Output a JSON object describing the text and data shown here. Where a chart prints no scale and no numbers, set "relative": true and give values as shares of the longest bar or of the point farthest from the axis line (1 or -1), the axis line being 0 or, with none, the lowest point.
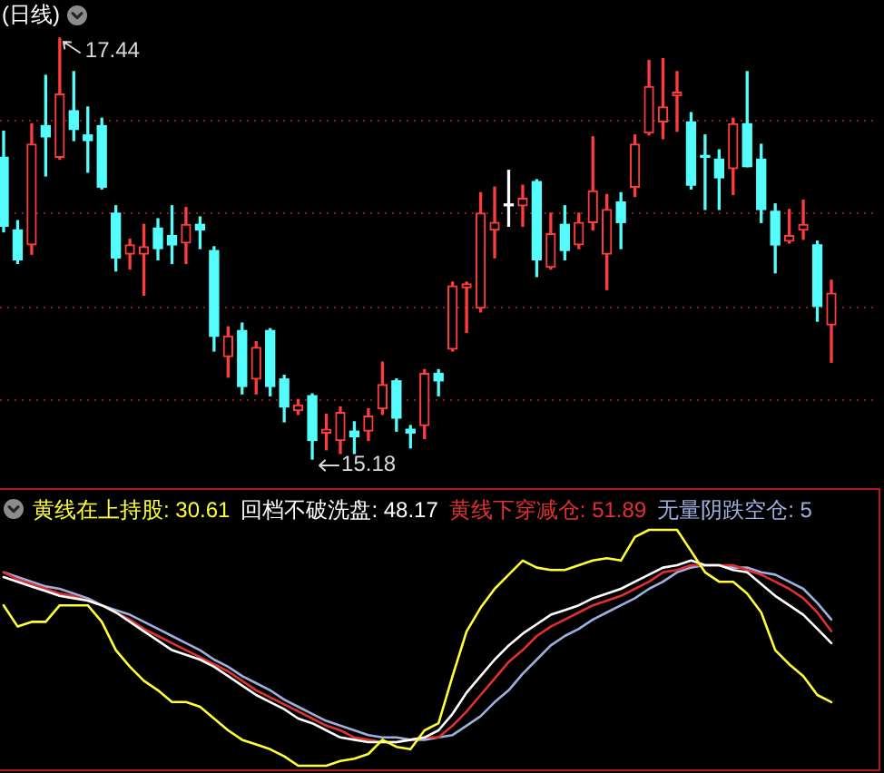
{
  "chart_data": [
    {
      "type": "candlestick",
      "title": "(日线)",
      "grid": "y",
      "categories": [
        null,
        null,
        null,
        null,
        null,
        null,
        null,
        null,
        null,
        null,
        null,
        null,
        null,
        null,
        null,
        null,
        null,
        null,
        null,
        null,
        null,
        null,
        null,
        null,
        null,
        null,
        null,
        null,
        null,
        null,
        null,
        null,
        null,
        null,
        null,
        null,
        null,
        null,
        null,
        null,
        null,
        null,
        null,
        null,
        null,
        null,
        null,
        null,
        null,
        null,
        null,
        null,
        null,
        null,
        null,
        null,
        null,
        null,
        null,
        null
      ],
      "ohlc": [
        [
          16.8,
          16.94,
          16.4,
          16.43
        ],
        [
          16.41,
          16.46,
          16.23,
          16.25
        ],
        [
          16.33,
          16.98,
          16.28,
          16.87
        ],
        [
          16.97,
          17.24,
          16.7,
          16.91
        ],
        [
          16.8,
          17.44,
          16.79,
          17.14
        ],
        [
          17.05,
          17.26,
          16.89,
          16.95
        ],
        [
          16.92,
          17.07,
          16.72,
          16.89
        ],
        [
          16.97,
          17.01,
          16.63,
          16.64
        ],
        [
          16.5,
          16.54,
          16.19,
          16.26
        ],
        [
          16.28,
          16.36,
          16.2,
          16.33
        ],
        [
          16.28,
          16.44,
          16.06,
          16.32
        ],
        [
          16.42,
          16.47,
          16.25,
          16.31
        ],
        [
          16.38,
          16.54,
          16.23,
          16.33
        ],
        [
          16.34,
          16.53,
          16.23,
          16.44
        ],
        [
          16.44,
          16.48,
          16.31,
          16.41
        ],
        [
          16.3,
          16.32,
          15.76,
          15.84
        ],
        [
          15.73,
          15.89,
          15.62,
          15.84
        ],
        [
          15.87,
          15.91,
          15.53,
          15.57
        ],
        [
          15.61,
          15.81,
          15.53,
          15.78
        ],
        [
          15.87,
          15.88,
          15.52,
          15.57
        ],
        [
          15.61,
          15.63,
          15.38,
          15.46
        ],
        [
          15.44,
          15.5,
          15.42,
          15.47
        ],
        [
          15.52,
          15.53,
          15.18,
          15.28
        ],
        [
          15.32,
          15.42,
          15.23,
          15.34
        ],
        [
          15.28,
          15.46,
          15.21,
          15.43
        ],
        [
          15.33,
          15.38,
          15.21,
          15.3
        ],
        [
          15.33,
          15.45,
          15.28,
          15.41
        ],
        [
          15.45,
          15.7,
          15.42,
          15.58
        ],
        [
          15.6,
          15.61,
          15.33,
          15.4
        ],
        [
          15.34,
          15.36,
          15.24,
          15.32
        ],
        [
          15.36,
          15.66,
          15.29,
          15.64
        ],
        [
          15.64,
          15.66,
          15.52,
          15.6
        ],
        [
          15.77,
          16.13,
          15.76,
          16.11
        ],
        [
          16.1,
          16.13,
          15.86,
          16.12
        ],
        [
          15.99,
          16.61,
          15.97,
          16.5
        ],
        [
          16.41,
          16.64,
          16.26,
          16.45
        ],
        [
          16.54,
          16.73,
          16.43,
          16.54
        ],
        [
          16.54,
          16.65,
          16.43,
          16.58
        ],
        [
          16.67,
          16.68,
          16.16,
          16.25
        ],
        [
          16.21,
          16.5,
          16.2,
          16.39
        ],
        [
          16.44,
          16.54,
          16.25,
          16.3
        ],
        [
          16.33,
          16.5,
          16.31,
          16.45
        ],
        [
          16.45,
          16.91,
          16.41,
          16.62
        ],
        [
          16.28,
          16.6,
          16.09,
          16.52
        ],
        [
          16.56,
          16.61,
          16.31,
          16.45
        ],
        [
          16.64,
          16.92,
          16.59,
          16.87
        ],
        [
          16.93,
          17.32,
          16.92,
          17.18
        ],
        [
          16.99,
          17.33,
          16.9,
          17.07
        ],
        [
          17.13,
          17.26,
          16.94,
          17.15
        ],
        [
          16.99,
          17.04,
          16.63,
          16.65
        ],
        [
          16.81,
          16.92,
          16.52,
          16.8
        ],
        [
          16.79,
          16.84,
          16.52,
          16.69
        ],
        [
          16.74,
          17.01,
          16.6,
          16.98
        ],
        [
          16.98,
          17.26,
          16.75,
          16.75
        ],
        [
          16.79,
          16.87,
          16.45,
          16.52
        ],
        [
          16.51,
          16.55,
          16.18,
          16.33
        ],
        [
          16.35,
          16.52,
          16.34,
          16.38
        ],
        [
          16.41,
          16.57,
          16.36,
          16.44
        ],
        [
          16.33,
          16.35,
          15.92,
          16.0
        ],
        [
          15.9,
          16.14,
          15.7,
          16.07
        ]
      ],
      "colors": [
        "#54fcfc",
        "#54fcfc",
        "#ff3c3c",
        "#54fcfc",
        "#ff3c3c",
        "#54fcfc",
        "#54fcfc",
        "#54fcfc",
        "#54fcfc",
        "#ff3c3c",
        "#ff3c3c",
        "#54fcfc",
        "#54fcfc",
        "#ff3c3c",
        "#54fcfc",
        "#54fcfc",
        "#ff3c3c",
        "#54fcfc",
        "#ff3c3c",
        "#54fcfc",
        "#54fcfc",
        "#ff3c3c",
        "#54fcfc",
        "#ff3c3c",
        "#ff3c3c",
        "#54fcfc",
        "#ff3c3c",
        "#ff3c3c",
        "#54fcfc",
        "#54fcfc",
        "#ff3c3c",
        "#54fcfc",
        "#ff3c3c",
        "#ff3c3c",
        "#ff3c3c",
        "#ff3c3c",
        "#ffffff",
        "#ff3c3c",
        "#54fcfc",
        "#ff3c3c",
        "#54fcfc",
        "#ff3c3c",
        "#ff3c3c",
        "#ff3c3c",
        "#54fcfc",
        "#ff3c3c",
        "#ff3c3c",
        "#ff3c3c",
        "#ff3c3c",
        "#54fcfc",
        "#54fcfc",
        "#54fcfc",
        "#ff3c3c",
        "#54fcfc",
        "#54fcfc",
        "#54fcfc",
        "#ff3c3c",
        "#ff3c3c",
        "#54fcfc",
        "#ff3c3c"
      ],
      "yticks": [
        {
          "value": 17,
          "label": null
        },
        {
          "value": 16.5,
          "label": null
        },
        {
          "value": 16,
          "label": null
        },
        {
          "value": 15.5,
          "label": null
        }
      ],
      "annotations": [
        "17.44",
        "15.18"
      ]
    },
    {
      "type": "line",
      "relative": true,
      "legend": "top left",
      "categories": [
        null,
        null,
        null,
        null,
        null,
        null,
        null,
        null,
        null,
        null,
        null,
        null,
        null,
        null,
        null,
        null,
        null,
        null,
        null,
        null,
        null,
        null,
        null,
        null,
        null,
        null,
        null,
        null,
        null,
        null,
        null,
        null,
        null,
        null,
        null,
        null,
        null,
        null,
        null,
        null,
        null,
        null,
        null,
        null,
        null,
        null,
        null,
        null,
        null,
        null,
        null,
        null,
        null,
        null,
        null,
        null,
        null,
        null,
        null,
        null
      ],
      "series": [
        {
          "name": "黄线在上持股: 30.61",
          "color": "#ffff33",
          "values": [
            0.68,
            0.59,
            0.61,
            0.61,
            0.68,
            0.68,
            0.68,
            0.61,
            0.49,
            0.42,
            0.36,
            0.32,
            0.27,
            0.27,
            0.25,
            0.2,
            0.15,
            0.11,
            0.09,
            0.07,
            0.04,
            0,
            0,
            0,
            0.02,
            0.03,
            0.05,
            0.11,
            0.08,
            0.07,
            0.15,
            0.18,
            0.38,
            0.57,
            0.67,
            0.75,
            0.81,
            0.87,
            0.84,
            0.83,
            0.83,
            0.85,
            0.87,
            0.88,
            0.87,
            0.97,
            1,
            1,
            1,
            0.91,
            0.82,
            0.78,
            0.78,
            0.73,
            0.65,
            0.49,
            0.43,
            0.38,
            0.3,
            0.27
          ]
        },
        {
          "name": "回档不破洗盘: 48.17",
          "color": "#ffffff",
          "values": [
            0.8,
            0.78,
            0.76,
            0.74,
            0.72,
            0.71,
            0.7,
            0.68,
            0.65,
            0.61,
            0.57,
            0.53,
            0.49,
            0.47,
            0.45,
            0.42,
            0.38,
            0.34,
            0.3,
            0.27,
            0.24,
            0.2,
            0.18,
            0.15,
            0.12,
            0.11,
            0.1,
            0.1,
            0.1,
            0.11,
            0.12,
            0.15,
            0.22,
            0.31,
            0.38,
            0.45,
            0.51,
            0.56,
            0.6,
            0.64,
            0.66,
            0.68,
            0.71,
            0.73,
            0.75,
            0.78,
            0.81,
            0.84,
            0.85,
            0.87,
            0.85,
            0.85,
            0.83,
            0.82,
            0.77,
            0.72,
            0.68,
            0.64,
            0.58,
            0.52
          ]
        },
        {
          "name": "黄线下穿减仓: 51.89",
          "color": "#e03030",
          "values": [
            0.82,
            0.79,
            0.77,
            0.75,
            0.73,
            0.72,
            0.7,
            0.68,
            0.65,
            0.62,
            0.58,
            0.55,
            0.52,
            0.49,
            0.46,
            0.43,
            0.4,
            0.36,
            0.32,
            0.29,
            0.26,
            0.23,
            0.2,
            0.17,
            0.15,
            0.12,
            0.11,
            0.1,
            0.1,
            0.11,
            0.12,
            0.12,
            0.17,
            0.23,
            0.3,
            0.37,
            0.44,
            0.49,
            0.55,
            0.59,
            0.62,
            0.65,
            0.68,
            0.7,
            0.72,
            0.75,
            0.78,
            0.82,
            0.83,
            0.85,
            0.85,
            0.85,
            0.85,
            0.83,
            0.81,
            0.78,
            0.75,
            0.71,
            0.65,
            0.57
          ]
        },
        {
          "name": "无量阴跌空仓: 5",
          "color": "#9fb0e0",
          "values": [
            0.82,
            0.8,
            0.78,
            0.76,
            0.75,
            0.73,
            0.71,
            0.68,
            0.66,
            0.64,
            0.61,
            0.58,
            0.55,
            0.52,
            0.49,
            0.45,
            0.42,
            0.38,
            0.35,
            0.32,
            0.28,
            0.25,
            0.22,
            0.19,
            0.17,
            0.15,
            0.13,
            0.12,
            0.12,
            0.11,
            0.11,
            0.12,
            0.13,
            0.17,
            0.21,
            0.27,
            0.32,
            0.39,
            0.45,
            0.51,
            0.55,
            0.58,
            0.62,
            0.65,
            0.68,
            0.71,
            0.75,
            0.78,
            0.82,
            0.84,
            0.85,
            0.85,
            0.84,
            0.84,
            0.82,
            0.81,
            0.78,
            0.75,
            0.69,
            0.62
          ]
        }
      ]
    }
  ]
}
